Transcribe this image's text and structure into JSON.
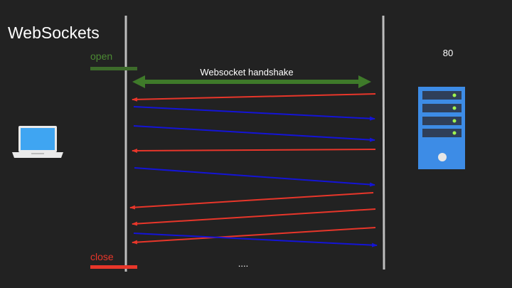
{
  "slide": {
    "title": "WebSockets",
    "port_label": "80",
    "open_label": "open",
    "close_label": "close",
    "handshake_label": "Websocket handshake",
    "ellipsis": "...."
  },
  "icons": {
    "client": "laptop-icon",
    "server": "server-icon"
  },
  "colors": {
    "background": "#222222",
    "open": "#3d6b2b",
    "handshake": "#3f7a2a",
    "close": "#e8362a",
    "server_to_client": "#e8362a",
    "client_to_server": "#1414d6",
    "lifeline": "#bdbdbd",
    "laptop": "#3fa5f2",
    "server": "#3d8ce6"
  },
  "messages": [
    {
      "direction": "server-to-client"
    },
    {
      "direction": "client-to-server"
    },
    {
      "direction": "client-to-server"
    },
    {
      "direction": "server-to-client"
    },
    {
      "direction": "client-to-server"
    },
    {
      "direction": "server-to-client"
    },
    {
      "direction": "server-to-client"
    },
    {
      "direction": "server-to-client"
    },
    {
      "direction": "client-to-server"
    }
  ]
}
